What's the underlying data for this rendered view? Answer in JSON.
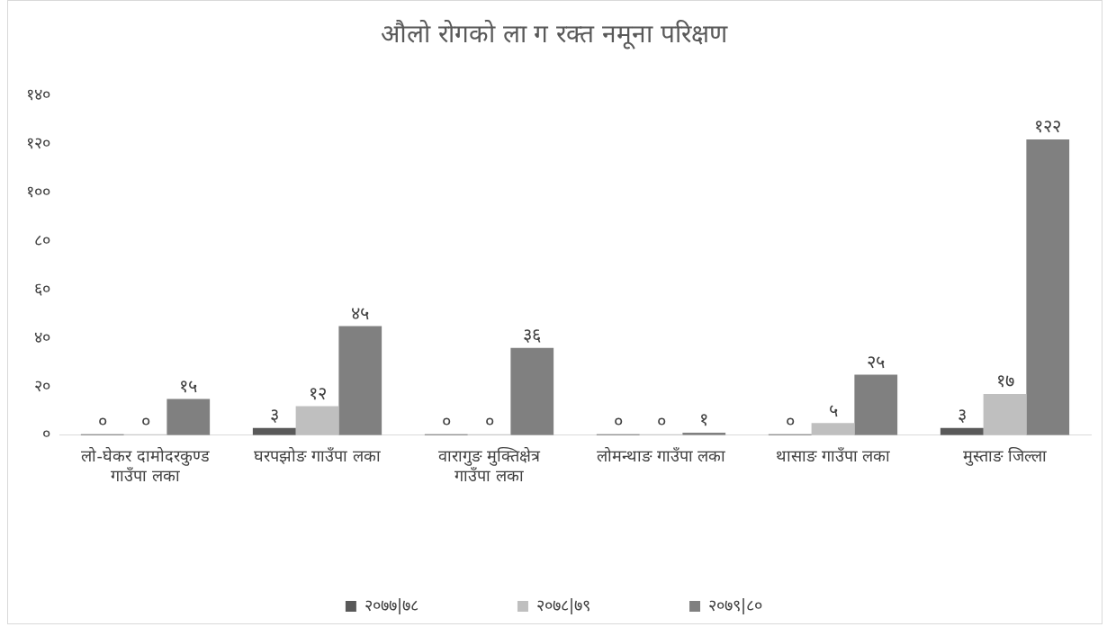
{
  "chart_data": {
    "type": "bar",
    "title": "औलो रोगको ला ग रक्त नमूना परिक्षण",
    "categories": [
      "लो-घेकर दामोदरकुण्ड गाउँपा लका",
      "घरपझोङ गाउँपा लका",
      "वारागुङ मुक्तिक्षेत्र गाउँपा लका",
      "लोमन्थाङ गाउँपा लका",
      "थासाङ गाउँपा लका",
      "मुस्ताङ जिल्ला"
    ],
    "series": [
      {
        "name": "२०७७|७८",
        "color": "#595959",
        "values": [
          0,
          3,
          0,
          0,
          0,
          3
        ],
        "value_labels": [
          "०",
          "३",
          "०",
          "०",
          "०",
          "३"
        ]
      },
      {
        "name": "२०७८|७९",
        "color": "#bfbfbf",
        "values": [
          0,
          12,
          0,
          0,
          5,
          17
        ],
        "value_labels": [
          "०",
          "१२",
          "०",
          "०",
          "५",
          "१७"
        ]
      },
      {
        "name": "२०७९|८०",
        "color": "#808080",
        "values": [
          15,
          45,
          36,
          1,
          25,
          122
        ],
        "value_labels": [
          "१५",
          "४५",
          "३६",
          "१",
          "२५",
          "१२२"
        ]
      }
    ],
    "ylim": [
      0,
      140
    ],
    "yticks": [
      {
        "value": 0,
        "label": "०"
      },
      {
        "value": 20,
        "label": "२०"
      },
      {
        "value": 40,
        "label": "४०"
      },
      {
        "value": 60,
        "label": "६०"
      },
      {
        "value": 80,
        "label": "८०"
      },
      {
        "value": 100,
        "label": "१००"
      },
      {
        "value": 120,
        "label": "१२०"
      },
      {
        "value": 140,
        "label": "१४०"
      }
    ],
    "grid": false,
    "legend": "bottom"
  }
}
